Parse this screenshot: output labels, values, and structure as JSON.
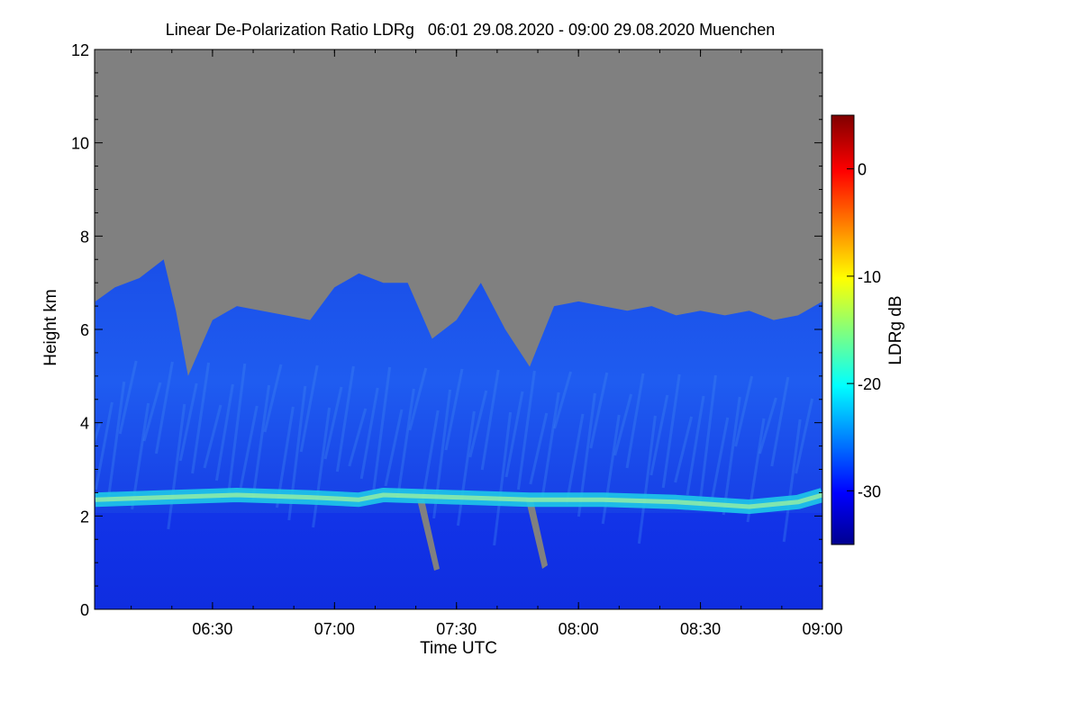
{
  "chart_data": {
    "type": "heatmap",
    "title": "Linear De-Polarization Ratio LDRg   06:01 29.08.2020 - 09:00 29.08.2020 Muenchen",
    "xlabel": "Time UTC",
    "ylabel": "Height km",
    "colorbar_label": "LDRg dB",
    "xlim": [
      "06:01",
      "09:00"
    ],
    "x_ticks": [
      "06:30",
      "07:00",
      "07:30",
      "08:00",
      "08:30",
      "09:00"
    ],
    "ylim": [
      0,
      12
    ],
    "y_ticks": [
      0,
      2,
      4,
      6,
      8,
      10,
      12
    ],
    "colorbar_range": [
      -35,
      5
    ],
    "colorbar_ticks": [
      0,
      -10,
      -20,
      -30
    ],
    "colormap": [
      "#00008f",
      "#0000ff",
      "#00ffff",
      "#ffff00",
      "#ff0000",
      "#800000"
    ],
    "no_data_color": "#808080",
    "cloud_top_km": [
      [
        6.02,
        6.6
      ],
      [
        6.1,
        6.9
      ],
      [
        6.2,
        7.1
      ],
      [
        6.3,
        7.5
      ],
      [
        6.35,
        6.4
      ],
      [
        6.4,
        5.0
      ],
      [
        6.5,
        6.2
      ],
      [
        6.6,
        6.5
      ],
      [
        6.7,
        6.4
      ],
      [
        6.8,
        6.3
      ],
      [
        6.9,
        6.2
      ],
      [
        7.0,
        6.9
      ],
      [
        7.1,
        7.2
      ],
      [
        7.2,
        7.0
      ],
      [
        7.3,
        7.0
      ],
      [
        7.4,
        5.8
      ],
      [
        7.5,
        6.2
      ],
      [
        7.6,
        7.0
      ],
      [
        7.7,
        6.0
      ],
      [
        7.8,
        5.2
      ],
      [
        7.9,
        6.5
      ],
      [
        8.0,
        6.6
      ],
      [
        8.1,
        6.5
      ],
      [
        8.2,
        6.4
      ],
      [
        8.3,
        6.5
      ],
      [
        8.4,
        6.3
      ],
      [
        8.5,
        6.4
      ],
      [
        8.6,
        6.3
      ],
      [
        8.7,
        6.4
      ],
      [
        8.8,
        6.2
      ],
      [
        8.9,
        6.3
      ],
      [
        9.0,
        6.6
      ]
    ],
    "layer_height_km": [
      [
        6.02,
        2.35
      ],
      [
        6.3,
        2.4
      ],
      [
        6.6,
        2.45
      ],
      [
        6.9,
        2.4
      ],
      [
        7.1,
        2.35
      ],
      [
        7.2,
        2.45
      ],
      [
        7.5,
        2.4
      ],
      [
        7.8,
        2.35
      ],
      [
        8.1,
        2.35
      ],
      [
        8.4,
        2.3
      ],
      [
        8.7,
        2.2
      ],
      [
        8.9,
        2.3
      ],
      [
        9.0,
        2.45
      ]
    ],
    "layer_ldr_db": -20
  }
}
